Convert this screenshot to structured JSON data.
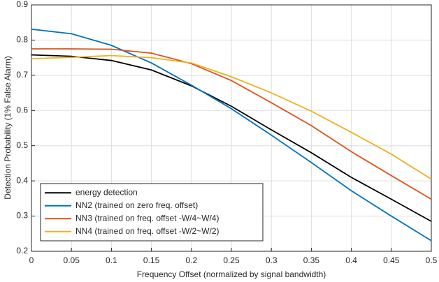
{
  "chart_data": {
    "type": "line",
    "xlabel": "Frequency Offset (normalized by signal bandwidth)",
    "ylabel": "Detection Probability (1% False Alarm)",
    "x": [
      0,
      0.05,
      0.1,
      0.15,
      0.2,
      0.25,
      0.3,
      0.35,
      0.4,
      0.45,
      0.5
    ],
    "series": [
      {
        "name": "energy detection",
        "color": "#000000",
        "values": [
          0.758,
          0.754,
          0.742,
          0.715,
          0.67,
          0.612,
          0.545,
          0.48,
          0.41,
          0.348,
          0.285
        ]
      },
      {
        "name": "NN2 (trained on zero freq. offset)",
        "color": "#0072bd",
        "values": [
          0.831,
          0.818,
          0.785,
          0.735,
          0.672,
          0.605,
          0.53,
          0.452,
          0.372,
          0.3,
          0.23
        ]
      },
      {
        "name": "NN3 (trained on freq. offset -W/4~W/4)",
        "color": "#d95319",
        "values": [
          0.775,
          0.775,
          0.774,
          0.763,
          0.733,
          0.685,
          0.622,
          0.557,
          0.483,
          0.415,
          0.348
        ]
      },
      {
        "name": "NN4 (trained on freq. offset -W/2~W/2)",
        "color": "#edb120",
        "values": [
          0.747,
          0.751,
          0.756,
          0.75,
          0.735,
          0.696,
          0.65,
          0.598,
          0.538,
          0.476,
          0.405
        ]
      }
    ],
    "xlim": [
      0,
      0.5
    ],
    "xticks": [
      0,
      0.05,
      0.1,
      0.15,
      0.2,
      0.25,
      0.3,
      0.35,
      0.4,
      0.45,
      0.5
    ],
    "ylim": [
      0.2,
      0.9
    ],
    "yticks": [
      0.2,
      0.3,
      0.4,
      0.5,
      0.6,
      0.7,
      0.8,
      0.9
    ],
    "grid": true,
    "legend": "lower-left"
  }
}
